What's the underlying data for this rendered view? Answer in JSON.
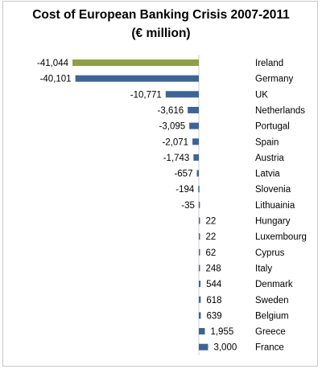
{
  "chart_data": {
    "type": "bar",
    "orientation": "horizontal",
    "title": "Cost of European Banking Crisis 2007-2011",
    "subtitle": "(€ million)",
    "categories": [
      "Ireland",
      "Germany",
      "UK",
      "Netherlands",
      "Portugal",
      "Spain",
      "Austria",
      "Latvia",
      "Slovenia",
      "Lithuainia",
      "Hungary",
      "Luxembourg",
      "Cyprus",
      "Italy",
      "Denmark",
      "Sweden",
      "Belgium",
      "Greece",
      "France"
    ],
    "values": [
      -41044,
      -40101,
      -10771,
      -3616,
      -3095,
      -2071,
      -1743,
      -657,
      -194,
      -35,
      22,
      22,
      62,
      248,
      544,
      618,
      639,
      1955,
      3000
    ],
    "value_labels": [
      "-41,044",
      "-40,101",
      "-10,771",
      "-3,616",
      "-3,095",
      "-2,071",
      "-1,743",
      "-657",
      "-194",
      "-35",
      "22",
      "22",
      "62",
      "248",
      "544",
      "618",
      "639",
      "1,955",
      "3,000"
    ],
    "highlight_category": "Ireland",
    "colors": {
      "highlight": "#8ea043",
      "default": "#3d6496"
    },
    "xlim": [
      -42000,
      3000
    ],
    "grid": false,
    "legend": "none"
  }
}
